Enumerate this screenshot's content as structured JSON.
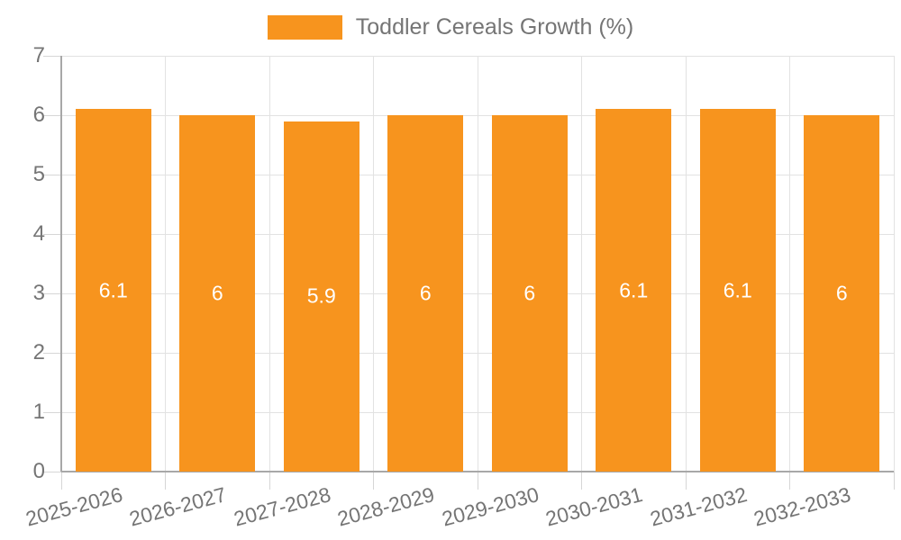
{
  "chart_data": {
    "type": "bar",
    "title": "Toddler Cereals Growth (%)",
    "categories": [
      "2025-2026",
      "2026-2027",
      "2027-2028",
      "2028-2029",
      "2029-2030",
      "2030-2031",
      "2031-2032",
      "2032-2033"
    ],
    "values": [
      6.1,
      6,
      5.9,
      6,
      6,
      6.1,
      6.1,
      6
    ],
    "value_labels": [
      "6.1",
      "6",
      "5.9",
      "6",
      "6",
      "6.1",
      "6.1",
      "6"
    ],
    "xlabel": "",
    "ylabel": "",
    "ylim": [
      0,
      7
    ],
    "yticks": [
      0,
      1,
      2,
      3,
      4,
      5,
      6,
      7
    ],
    "grid": true,
    "legend_position": "top-center",
    "x_label_rotation_deg": -15,
    "colors": {
      "bar": "#F7941E",
      "value_label": "#FFFFFF",
      "axis_text": "#757575",
      "gridline": "#E2E2E2",
      "tick": "#D6D6D6",
      "axis_line": "#A8A8A8",
      "background": "#FFFFFF"
    }
  },
  "legend": {
    "items": [
      {
        "label": "Toddler Cereals Growth (%)",
        "color": "#F7941E"
      }
    ]
  }
}
